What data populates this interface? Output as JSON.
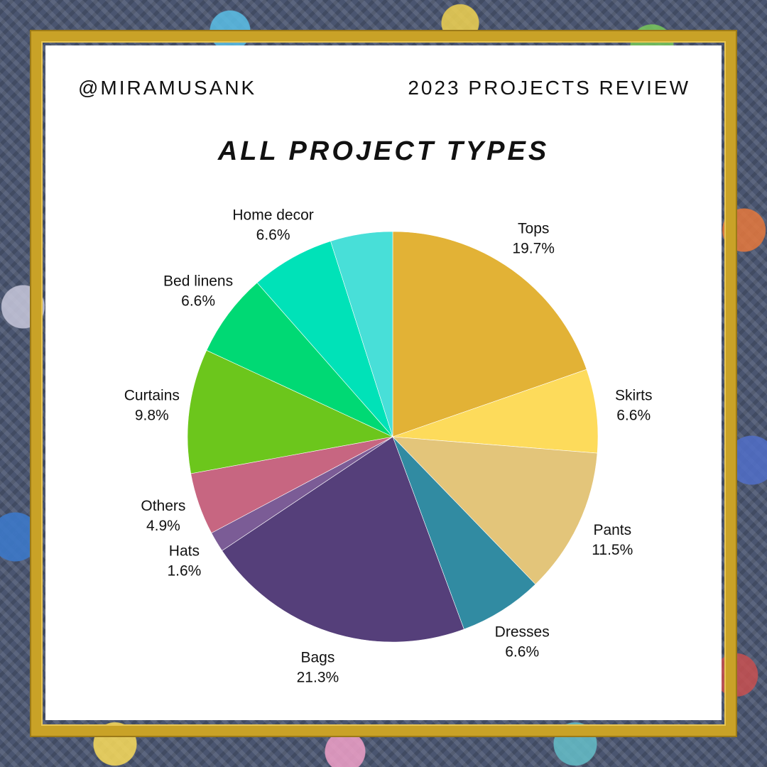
{
  "header": {
    "handle": "@MIRAMUSANK",
    "subtitle": "2023 PROJECTS REVIEW"
  },
  "chart_data": {
    "type": "pie",
    "title": "ALL PROJECT TYPES",
    "start_angle_deg": 0,
    "direction": "clockwise",
    "slices": [
      {
        "label": "Tops",
        "value": 19.7,
        "display": "19.7%",
        "color": "#E2B236"
      },
      {
        "label": "Skirts",
        "value": 6.6,
        "display": "6.6%",
        "color": "#FDDB5B"
      },
      {
        "label": "Pants",
        "value": 11.5,
        "display": "11.5%",
        "color": "#E3C57A"
      },
      {
        "label": "Dresses",
        "value": 6.6,
        "display": "6.6%",
        "color": "#318BA2"
      },
      {
        "label": "Bags",
        "value": 21.3,
        "display": "21.3%",
        "color": "#553F7A"
      },
      {
        "label": "Hats",
        "value": 1.6,
        "display": "1.6%",
        "color": "#7B5C96"
      },
      {
        "label": "Others",
        "value": 4.9,
        "display": "4.9%",
        "color": "#C76681"
      },
      {
        "label": "Curtains",
        "value": 9.8,
        "display": "9.8%",
        "color": "#6CC61C"
      },
      {
        "label": "Bed linens",
        "value": 6.6,
        "display": "6.6%",
        "color": "#00D974"
      },
      {
        "label": "Home decor",
        "value": 6.6,
        "display": "6.6%",
        "color": "#00E2B8"
      },
      {
        "label": "",
        "value": 4.9,
        "display": "",
        "color": "#48DFD8"
      }
    ]
  }
}
